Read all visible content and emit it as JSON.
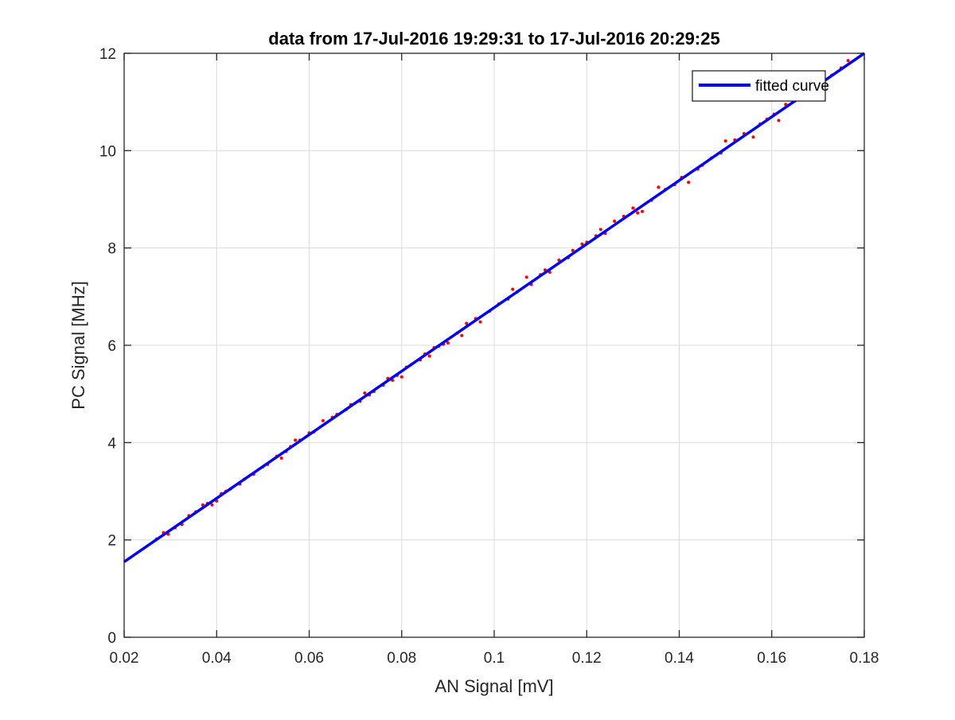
{
  "chart_data": {
    "type": "scatter",
    "title": "data from 17-Jul-2016 19:29:31 to 17-Jul-2016 20:29:25",
    "xlabel": "AN Signal [mV]",
    "ylabel": "PC Signal [MHz]",
    "xlim": [
      0.02,
      0.18
    ],
    "ylim": [
      0,
      12
    ],
    "xticks": [
      0.02,
      0.04,
      0.06,
      0.08,
      0.1,
      0.12,
      0.14,
      0.16,
      0.18
    ],
    "xtick_labels": [
      "0.02",
      "0.04",
      "0.06",
      "0.08",
      "0.1",
      "0.12",
      "0.14",
      "0.16",
      "0.18"
    ],
    "yticks": [
      0,
      2,
      4,
      6,
      8,
      10,
      12
    ],
    "ytick_labels": [
      "0",
      "2",
      "4",
      "6",
      "8",
      "10",
      "12"
    ],
    "grid": true,
    "legend": {
      "position": "top-right",
      "entries": [
        "fitted curve"
      ]
    },
    "fit": {
      "name": "fitted curve",
      "color": "#0000ff",
      "x": [
        0.02,
        0.18
      ],
      "y": [
        1.55,
        12.0
      ]
    },
    "points": {
      "color": "#ff0000",
      "x": [
        0.027,
        0.0285,
        0.0295,
        0.031,
        0.0325,
        0.034,
        0.0355,
        0.037,
        0.038,
        0.039,
        0.04,
        0.041,
        0.042,
        0.043,
        0.045,
        0.046,
        0.048,
        0.05,
        0.051,
        0.053,
        0.054,
        0.055,
        0.056,
        0.057,
        0.058,
        0.06,
        0.061,
        0.063,
        0.065,
        0.066,
        0.068,
        0.069,
        0.071,
        0.072,
        0.073,
        0.074,
        0.076,
        0.077,
        0.078,
        0.079,
        0.08,
        0.081,
        0.082,
        0.084,
        0.085,
        0.086,
        0.087,
        0.088,
        0.089,
        0.09,
        0.092,
        0.093,
        0.094,
        0.096,
        0.097,
        0.099,
        0.101,
        0.103,
        0.104,
        0.105,
        0.107,
        0.108,
        0.11,
        0.111,
        0.112,
        0.114,
        0.116,
        0.117,
        0.119,
        0.12,
        0.122,
        0.123,
        0.124,
        0.126,
        0.128,
        0.13,
        0.131,
        0.132,
        0.134,
        0.1355,
        0.137,
        0.139,
        0.1405,
        0.142,
        0.144,
        0.145,
        0.147,
        0.149,
        0.15,
        0.152,
        0.154,
        0.156,
        0.1575,
        0.159,
        0.1605,
        0.1615,
        0.163,
        0.165,
        0.167,
        0.169,
        0.171,
        0.173,
        0.175,
        0.1765
      ],
      "y": [
        2.02,
        2.15,
        2.12,
        2.25,
        2.32,
        2.5,
        2.58,
        2.72,
        2.75,
        2.72,
        2.8,
        2.95,
        3.0,
        3.05,
        3.15,
        3.25,
        3.35,
        3.5,
        3.55,
        3.72,
        3.68,
        3.82,
        3.92,
        4.05,
        4.05,
        4.2,
        4.22,
        4.45,
        4.52,
        4.58,
        4.68,
        4.78,
        4.85,
        5.02,
        4.98,
        5.05,
        5.18,
        5.32,
        5.28,
        5.38,
        5.35,
        5.55,
        5.6,
        5.7,
        5.82,
        5.78,
        5.95,
        5.98,
        6.02,
        6.05,
        6.25,
        6.2,
        6.45,
        6.55,
        6.48,
        6.7,
        6.85,
        6.95,
        7.15,
        7.1,
        7.4,
        7.25,
        7.45,
        7.55,
        7.5,
        7.75,
        7.8,
        7.95,
        8.08,
        8.12,
        8.25,
        8.38,
        8.3,
        8.55,
        8.65,
        8.82,
        8.72,
        8.75,
        8.98,
        9.25,
        9.2,
        9.3,
        9.45,
        9.35,
        9.62,
        9.7,
        9.85,
        9.95,
        10.2,
        10.22,
        10.35,
        10.28,
        10.55,
        10.65,
        10.75,
        10.62,
        10.95,
        11.02,
        11.15,
        11.28,
        11.42,
        11.55,
        11.7,
        11.85
      ]
    }
  }
}
